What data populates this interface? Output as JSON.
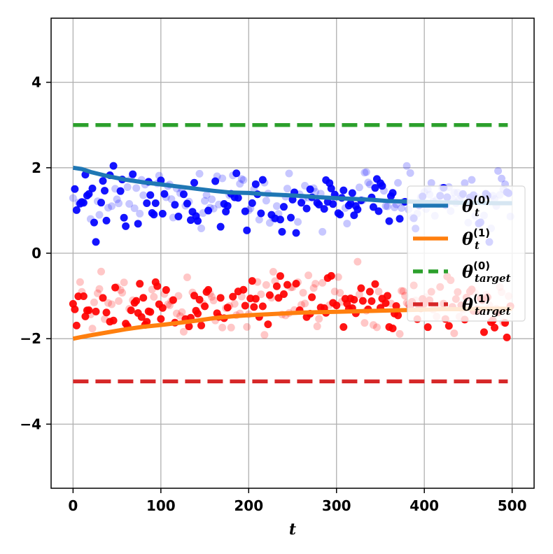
{
  "chart_data": {
    "type": "scatter",
    "title": "",
    "xlabel": "t",
    "ylabel": "",
    "xlim": [
      -25,
      525
    ],
    "ylim": [
      -5.5,
      5.5
    ],
    "xticks": [
      0,
      100,
      200,
      300,
      400,
      500
    ],
    "yticks": [
      -4,
      -2,
      0,
      2,
      4
    ],
    "xtick_labels": [
      "0",
      "100",
      "200",
      "300",
      "400",
      "500"
    ],
    "ytick_labels": [
      "−4",
      "−2",
      "0",
      "2",
      "4"
    ],
    "grid": true,
    "legend_position": "right",
    "series": [
      {
        "key": "theta0",
        "kind": "line",
        "color": "#1f77b4",
        "legend_base": "θ",
        "legend_sub": "t",
        "legend_sup": "(0)",
        "x": [
          0,
          10,
          20,
          40,
          60,
          80,
          100,
          120,
          140,
          160,
          180,
          200,
          220,
          240,
          260,
          280,
          300,
          320,
          340,
          360,
          380,
          400,
          420,
          440,
          460,
          480,
          500
        ],
        "y": [
          2.0,
          1.97,
          1.9,
          1.8,
          1.72,
          1.66,
          1.61,
          1.56,
          1.51,
          1.46,
          1.42,
          1.41,
          1.38,
          1.36,
          1.34,
          1.31,
          1.29,
          1.27,
          1.25,
          1.22,
          1.21,
          1.2,
          1.19,
          1.18,
          1.18,
          1.17,
          1.17
        ]
      },
      {
        "key": "theta1",
        "kind": "line",
        "color": "#ff7f0e",
        "legend_base": "θ",
        "legend_sub": "t",
        "legend_sup": "(1)",
        "x": [
          0,
          10,
          20,
          40,
          60,
          80,
          100,
          120,
          140,
          160,
          180,
          200,
          220,
          240,
          260,
          280,
          300,
          320,
          340,
          360,
          380,
          400,
          420,
          440,
          460,
          480,
          500
        ],
        "y": [
          -2.0,
          -1.96,
          -1.92,
          -1.85,
          -1.78,
          -1.72,
          -1.68,
          -1.63,
          -1.58,
          -1.52,
          -1.48,
          -1.45,
          -1.43,
          -1.41,
          -1.39,
          -1.38,
          -1.37,
          -1.36,
          -1.35,
          -1.34,
          -1.33,
          -1.32,
          -1.31,
          -1.31,
          -1.3,
          -1.3,
          -1.3
        ]
      },
      {
        "key": "target0",
        "kind": "dashed",
        "color": "#2ca02c",
        "legend_base": "θ",
        "legend_sub": "target",
        "legend_sup": "(0)",
        "x": [
          0,
          495
        ],
        "y": [
          3.0,
          3.0
        ]
      },
      {
        "key": "target1",
        "kind": "dashed",
        "color": "#d62728",
        "legend_base": "θ",
        "legend_sub": "target",
        "legend_sup": "(1)",
        "x": [
          0,
          495
        ],
        "y": [
          -3.0,
          -3.0
        ]
      }
    ],
    "scatter": [
      {
        "key": "obs0",
        "color": "#0000ff",
        "center": 1.2,
        "spread": 0.55,
        "count": 250,
        "seed": 17
      },
      {
        "key": "obs1",
        "color": "#ff0000",
        "center": -1.25,
        "spread": 0.5,
        "count": 250,
        "seed": 91
      }
    ]
  }
}
